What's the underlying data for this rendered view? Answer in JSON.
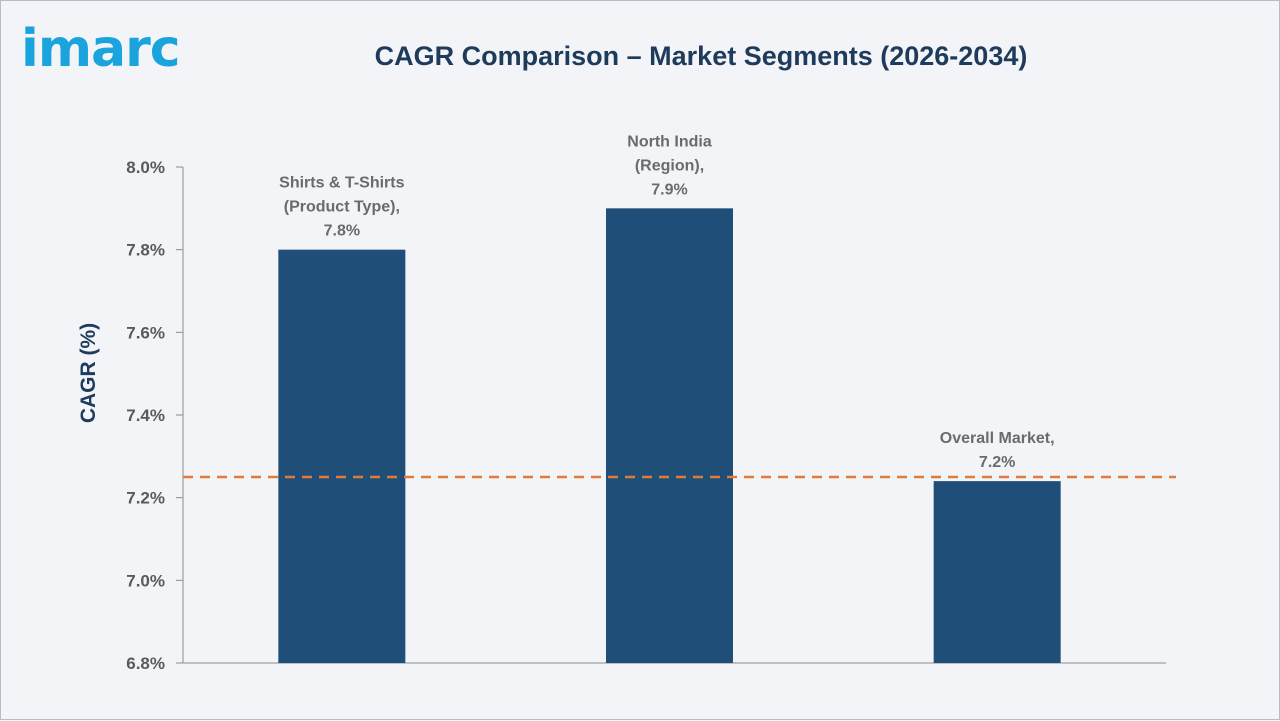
{
  "header": {
    "logo_text": "imarc",
    "title": "CAGR Comparison – Market Segments (2026-2034)"
  },
  "chart_data": {
    "type": "bar",
    "title": "CAGR Comparison – Market Segments (2026-2034)",
    "xlabel": "",
    "ylabel": "CAGR (%)",
    "ylim": [
      6.8,
      8.0
    ],
    "yticks": [
      "6.8%",
      "7.0%",
      "7.2%",
      "7.4%",
      "7.6%",
      "7.8%",
      "8.0%"
    ],
    "ytick_values": [
      6.8,
      7.0,
      7.2,
      7.4,
      7.6,
      7.8,
      8.0
    ],
    "categories": [
      "Shirts & T-Shirts (Product Type)",
      "North India (Region)",
      "Overall Market"
    ],
    "values": [
      7.8,
      7.9,
      7.24
    ],
    "data_labels": [
      [
        "Shirts & T-Shirts",
        "(Product Type),",
        "7.8%"
      ],
      [
        "North India",
        "(Region),",
        "7.9%"
      ],
      [
        "Overall Market,",
        "7.2%"
      ]
    ],
    "reference_line": {
      "value": 7.25,
      "style": "dashed"
    },
    "grid": false,
    "legend": "none",
    "colors": {
      "bar": "#1f4e79",
      "reference_line": "#e07b39",
      "title": "#1f3b5c",
      "logo": "#1aa3dc"
    }
  }
}
